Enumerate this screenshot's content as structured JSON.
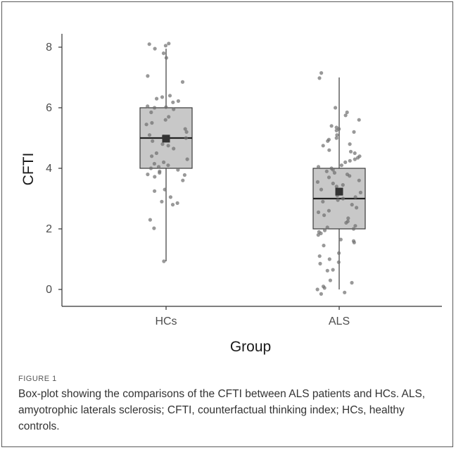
{
  "chart_data": {
    "type": "box",
    "xlabel": "Group",
    "ylabel": "CFTI",
    "ylim": [
      -0.6,
      8.5
    ],
    "yticks": [
      0,
      2,
      4,
      6,
      8
    ],
    "categories": [
      "HCs",
      "ALS"
    ],
    "groups": [
      {
        "name": "HCs",
        "min": 0.93,
        "q1": 4.0,
        "median": 5.0,
        "q3": 6.0,
        "max": 7.95,
        "mean": 4.98,
        "points": [
          8.05,
          8.12,
          8.1,
          7.95,
          7.8,
          7.65,
          7.05,
          6.85,
          6.4,
          6.35,
          6.3,
          6.22,
          6.18,
          6.05,
          6.02,
          6.0,
          5.95,
          5.85,
          5.7,
          5.6,
          5.5,
          5.45,
          5.3,
          5.2,
          5.1,
          5.05,
          5.0,
          4.9,
          4.8,
          4.75,
          4.65,
          4.5,
          4.4,
          4.3,
          4.2,
          4.15,
          4.1,
          4.05,
          4.0,
          3.95,
          3.9,
          3.85,
          3.8,
          3.78,
          3.72,
          3.6,
          3.3,
          3.25,
          3.05,
          2.9,
          2.85,
          2.8,
          2.3,
          2.02,
          0.93
        ]
      },
      {
        "name": "ALS",
        "min": 0.0,
        "q1": 2.0,
        "median": 3.0,
        "q3": 4.0,
        "max": 7.0,
        "mean": 3.23,
        "points": [
          7.15,
          6.98,
          6.0,
          5.85,
          5.75,
          5.6,
          5.4,
          5.35,
          5.3,
          5.25,
          5.2,
          5.1,
          5.0,
          4.95,
          4.9,
          4.8,
          4.75,
          4.6,
          4.55,
          4.5,
          4.4,
          4.35,
          4.3,
          4.25,
          4.2,
          4.1,
          4.05,
          4.0,
          3.95,
          3.9,
          3.85,
          3.8,
          3.75,
          3.7,
          3.6,
          3.55,
          3.5,
          3.45,
          3.4,
          3.3,
          3.2,
          3.1,
          3.05,
          3.0,
          2.95,
          2.9,
          2.8,
          2.7,
          2.6,
          2.55,
          2.45,
          2.35,
          2.25,
          2.2,
          2.1,
          2.05,
          2.0,
          1.95,
          1.9,
          1.85,
          1.8,
          1.65,
          1.6,
          1.55,
          1.45,
          1.2,
          1.1,
          1.0,
          0.9,
          0.85,
          0.65,
          0.62,
          0.3,
          0.22,
          0.1,
          0.05,
          0.0,
          -0.1,
          -0.15
        ]
      }
    ]
  },
  "caption": {
    "label": "FIGURE 1",
    "text": "Box-plot showing the comparisons of the CFTI between ALS patients and HCs. ALS, amyotrophic laterals sclerosis; CFTI, counterfactual thinking index; HCs, healthy controls."
  },
  "colors": {
    "box_fill": "#c8c8c8",
    "box_stroke": "#3a3a3a",
    "point": "#6e6e6e",
    "mean_marker": "#333333",
    "axis": "#333333"
  }
}
